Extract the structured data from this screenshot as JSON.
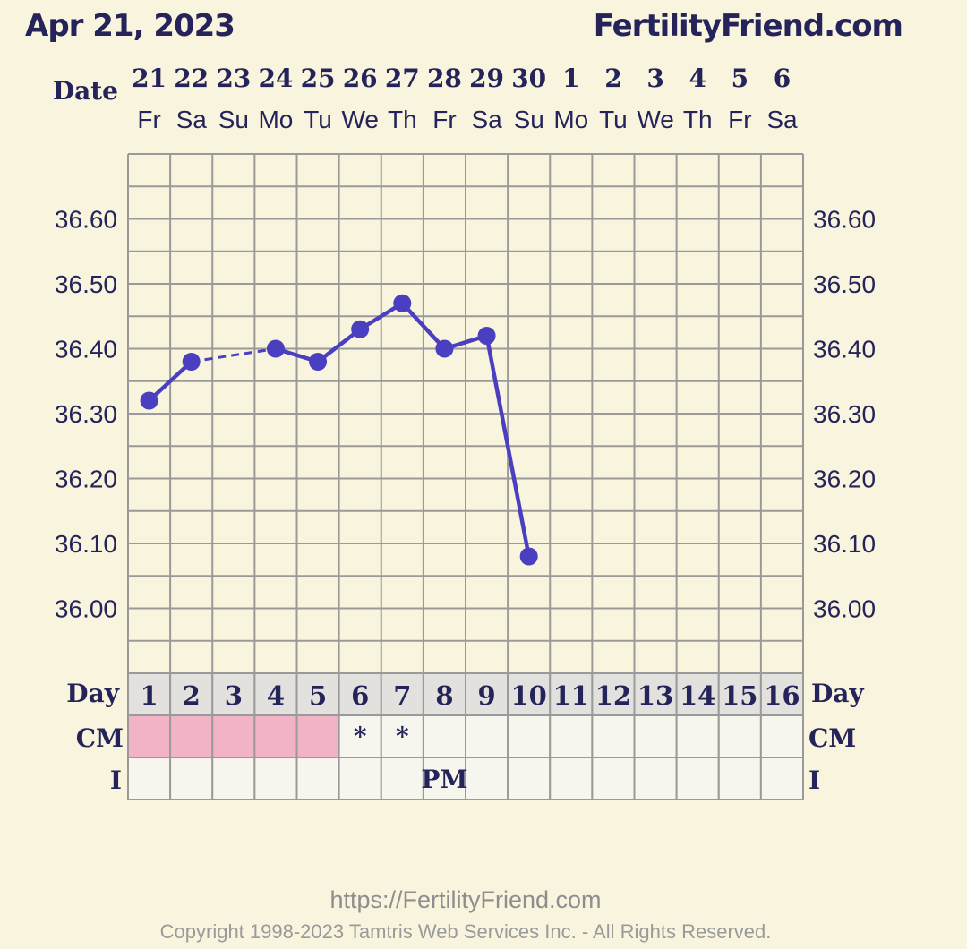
{
  "header": {
    "date": "Apr 21, 2023",
    "site": "FertilityFriend.com"
  },
  "labels": {
    "date_row": "Date",
    "day_row": "Day",
    "cm_row": "CM",
    "i_row": "I"
  },
  "columns": {
    "dates": [
      "21",
      "22",
      "23",
      "24",
      "25",
      "26",
      "27",
      "28",
      "29",
      "30",
      "1",
      "2",
      "3",
      "4",
      "5",
      "6"
    ],
    "weekdays": [
      "Fr",
      "Sa",
      "Su",
      "Mo",
      "Tu",
      "We",
      "Th",
      "Fr",
      "Sa",
      "Su",
      "Mo",
      "Tu",
      "We",
      "Th",
      "Fr",
      "Sa"
    ],
    "cycle_days": [
      "1",
      "2",
      "3",
      "4",
      "5",
      "6",
      "7",
      "8",
      "9",
      "10",
      "11",
      "12",
      "13",
      "14",
      "15",
      "16"
    ]
  },
  "chart_data": {
    "type": "line",
    "x": [
      1,
      2,
      3,
      4,
      5,
      6,
      7,
      8,
      9,
      10,
      11,
      12,
      13,
      14,
      15,
      16
    ],
    "series": [
      {
        "values": [
          36.32,
          36.38,
          null,
          36.4,
          36.38,
          36.43,
          36.47,
          36.4,
          36.42,
          36.08,
          null,
          null,
          null,
          null,
          null,
          null
        ]
      }
    ],
    "ylim": [
      35.9,
      36.7
    ],
    "y_ticks": [
      "36.60",
      "36.50",
      "36.40",
      "36.30",
      "36.20",
      "36.10",
      "36.00"
    ],
    "y_tick_values": [
      36.6,
      36.5,
      36.4,
      36.3,
      36.2,
      36.1,
      36.0
    ],
    "grid": true,
    "line_color": "#4a3fc0"
  },
  "cm_cells": [
    "",
    "",
    "",
    "",
    "",
    "*",
    "*",
    "",
    "",
    "",
    "",
    "",
    "",
    "",
    "",
    ""
  ],
  "cm_colors": [
    "#f2b3c6",
    "#f2b3c6",
    "#f2b3c6",
    "#f2b3c6",
    "#f2b3c6",
    "",
    "",
    "",
    "",
    "",
    "",
    "",
    "",
    "",
    "",
    ""
  ],
  "i_cells": [
    "",
    "",
    "",
    "",
    "",
    "",
    "",
    "PM",
    "",
    "",
    "",
    "",
    "",
    "",
    "",
    ""
  ],
  "footer": {
    "url": "https://FertilityFriend.com",
    "copyright": "Copyright 1998-2023 Tamtris Web Services Inc. - All Rights Reserved."
  }
}
